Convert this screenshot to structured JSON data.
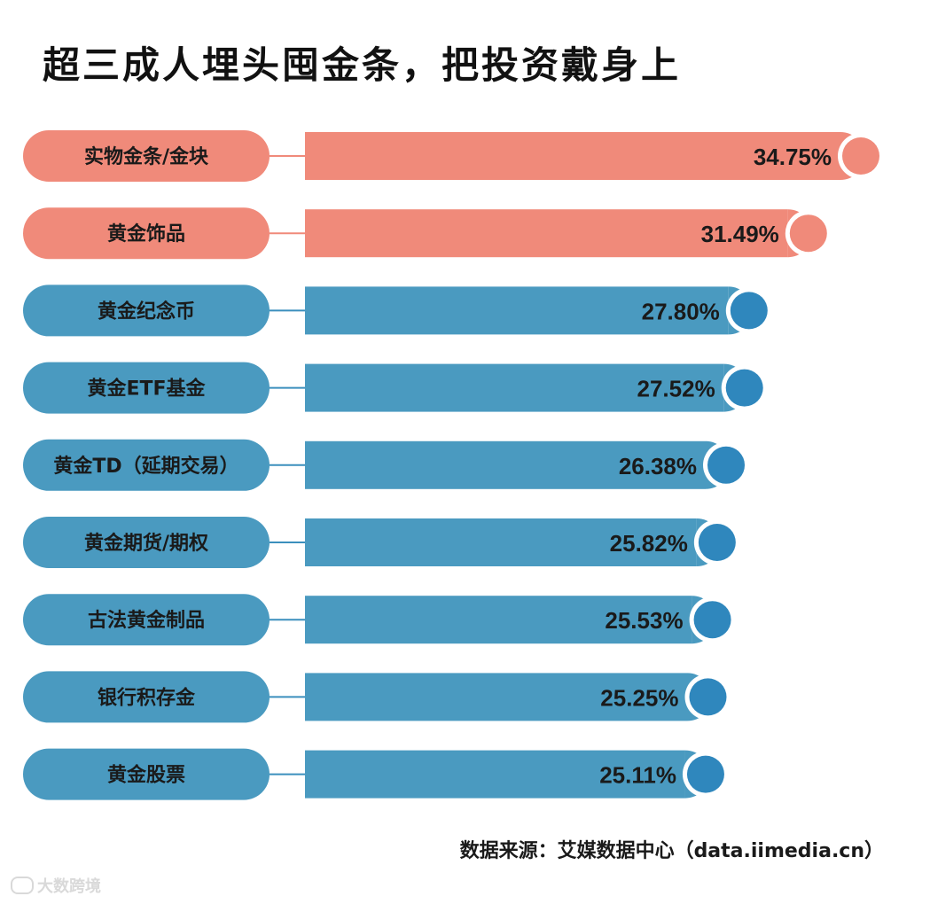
{
  "title": "超三成人埋头囤金条，把投资戴身上",
  "source": "数据来源：艾媒数据中心（data.iimedia.cn）",
  "watermark": "大数跨境",
  "colors": {
    "highlight": "#f08a7a",
    "normal": "#4a9ac0",
    "dot_normal": "#2f87bd",
    "line": "#3b8fbd"
  },
  "chart_data": {
    "type": "bar",
    "orientation": "horizontal",
    "categories": [
      "实物金条/金块",
      "黄金饰品",
      "黄金纪念币",
      "黄金ETF基金",
      "黄金TD（延期交易）",
      "黄金期货/期权",
      "古法黄金制品",
      "银行积存金",
      "黄金股票"
    ],
    "values": [
      34.75,
      31.49,
      27.8,
      27.52,
      26.38,
      25.82,
      25.53,
      25.25,
      25.11
    ],
    "labels": [
      "34.75%",
      "31.49%",
      "27.80%",
      "27.52%",
      "26.38%",
      "25.82%",
      "25.53%",
      "25.25%",
      "25.11%"
    ],
    "highlighted": [
      true,
      true,
      false,
      false,
      false,
      false,
      false,
      false,
      false
    ],
    "unit": "%"
  }
}
